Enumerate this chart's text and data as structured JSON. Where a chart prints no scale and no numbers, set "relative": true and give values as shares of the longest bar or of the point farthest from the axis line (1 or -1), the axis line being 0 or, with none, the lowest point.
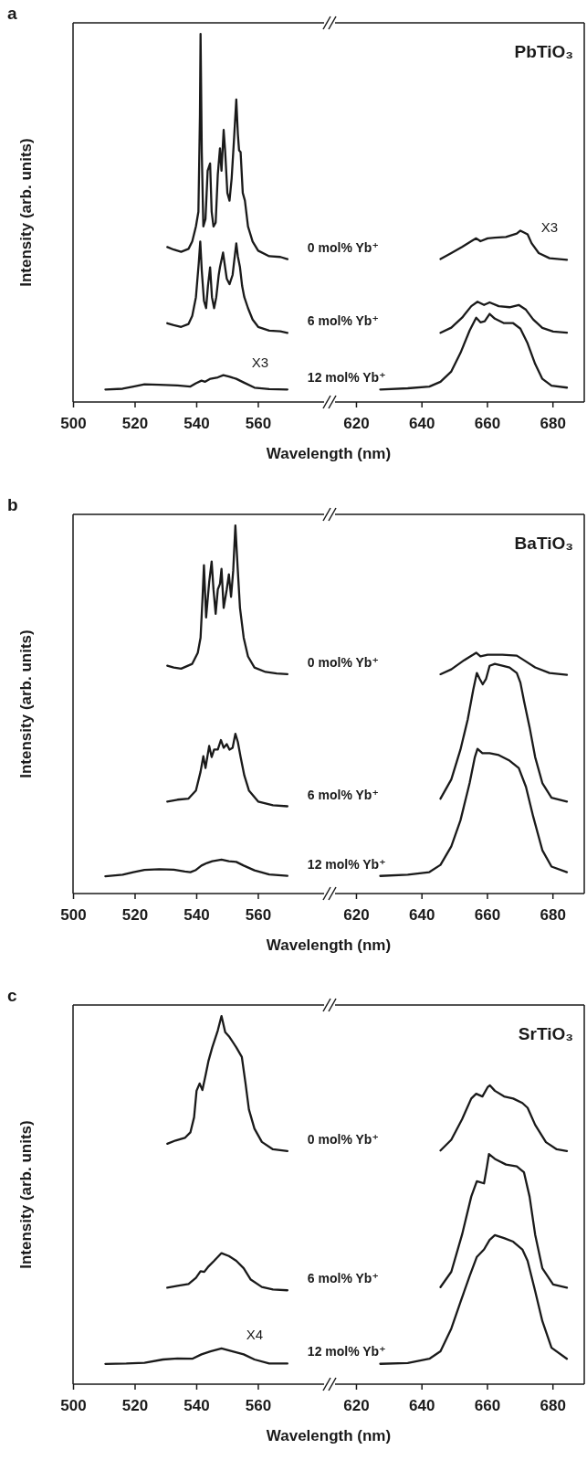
{
  "chart_data": [
    {
      "type": "line",
      "title": "a",
      "xlabel": "Wavelength (nm)",
      "ylabel": "Intensity (arb. units)",
      "xlim": [
        500,
        581.5
      ],
      "xticks": [
        500,
        520,
        540,
        560
      ],
      "relative": true,
      "annotations": [
        "X3"
      ],
      "series": [
        {
          "name": "0 mol% Yb⁺",
          "color": "#1a1a1a",
          "x": [
            530.6,
            532.7,
            535.1,
            537.5,
            538.7,
            539.9,
            540.7,
            541.2,
            541.4,
            541.8,
            542.3,
            543.0,
            543.7,
            544.5,
            545.0,
            545.6,
            546.3,
            547.0,
            547.7,
            548.2,
            548.9,
            549.4,
            550.1,
            550.8,
            551.5,
            552.3,
            553.0,
            553.5,
            553.9,
            554.4,
            555.1,
            555.8,
            556.8,
            558.3,
            560.1,
            563.7,
            567.3,
            569.6
          ],
          "values": [
            0.421,
            0.414,
            0.408,
            0.416,
            0.436,
            0.477,
            0.517,
            0.78,
            1.0,
            0.679,
            0.477,
            0.497,
            0.628,
            0.648,
            0.517,
            0.477,
            0.487,
            0.618,
            0.689,
            0.628,
            0.739,
            0.679,
            0.568,
            0.547,
            0.608,
            0.719,
            0.822,
            0.729,
            0.684,
            0.679,
            0.568,
            0.547,
            0.477,
            0.436,
            0.411,
            0.396,
            0.394,
            0.388
          ]
        },
        {
          "name": "6 mol% Yb⁺",
          "color": "#1a1a1a",
          "x": [
            530.6,
            532.7,
            535.1,
            537.5,
            538.7,
            539.9,
            540.8,
            541.3,
            541.8,
            542.5,
            543.2,
            543.8,
            544.5,
            545.1,
            545.8,
            546.5,
            547.3,
            547.7,
            548.2,
            548.7,
            549.2,
            549.9,
            550.8,
            551.8,
            552.5,
            553.0,
            553.5,
            554.2,
            554.9,
            555.6,
            556.8,
            558.3,
            560.1,
            563.7,
            567.3,
            569.6
          ],
          "values": [
            0.214,
            0.209,
            0.204,
            0.212,
            0.234,
            0.285,
            0.376,
            0.436,
            0.356,
            0.275,
            0.255,
            0.315,
            0.366,
            0.285,
            0.255,
            0.285,
            0.345,
            0.366,
            0.386,
            0.406,
            0.376,
            0.335,
            0.32,
            0.345,
            0.396,
            0.431,
            0.396,
            0.366,
            0.315,
            0.285,
            0.255,
            0.224,
            0.204,
            0.194,
            0.192,
            0.188
          ]
        },
        {
          "name": "12 mol% Yb⁺",
          "color": "#1a1a1a",
          "x": [
            510.5,
            516.1,
            519.6,
            523.2,
            528.0,
            533.9,
            538.1,
            539.9,
            541.7,
            542.9,
            544.6,
            547.0,
            548.8,
            550.6,
            553.0,
            555.4,
            558.9,
            563.7,
            569.6
          ],
          "values": [
            0.034,
            0.036,
            0.042,
            0.048,
            0.047,
            0.045,
            0.042,
            0.051,
            0.058,
            0.055,
            0.063,
            0.067,
            0.073,
            0.069,
            0.063,
            0.053,
            0.039,
            0.035,
            0.034
          ]
        }
      ]
    },
    {
      "type": "line",
      "title": "PbTiO₃",
      "xlim": [
        613.6,
        689.7
      ],
      "xticks": [
        620,
        640,
        660,
        680
      ],
      "relative": true,
      "annotations": [
        "X3"
      ],
      "series": [
        {
          "color": "#1a1a1a",
          "x": [
            645.8,
            649.1,
            652.4,
            655.2,
            656.7,
            658.0,
            660.2,
            662.4,
            665.8,
            669.1,
            670.2,
            672.4,
            673.6,
            675.8,
            679.1,
            684.4
          ],
          "values": [
            0.834,
            0.869,
            0.905,
            0.938,
            0.955,
            0.938,
            0.955,
            0.959,
            0.963,
            0.983,
            1.0,
            0.978,
            0.927,
            0.869,
            0.839,
            0.83
          ]
        },
        {
          "color": "#1a1a1a",
          "x": [
            645.8,
            649.1,
            652.4,
            655.2,
            657.1,
            659.1,
            660.8,
            663.6,
            666.9,
            669.7,
            671.9,
            674.1,
            676.9,
            680.2,
            684.4
          ],
          "values": [
            0.404,
            0.434,
            0.492,
            0.559,
            0.585,
            0.566,
            0.581,
            0.559,
            0.553,
            0.566,
            0.538,
            0.482,
            0.432,
            0.411,
            0.404
          ]
        },
        {
          "color": "#1a1a1a",
          "x": [
            627.4,
            635.8,
            642.4,
            645.8,
            649.1,
            651.9,
            654.7,
            656.7,
            658.0,
            659.3,
            660.8,
            662.4,
            665.2,
            668.0,
            670.2,
            672.4,
            674.7,
            676.9,
            679.7,
            684.4
          ],
          "values": [
            0.073,
            0.08,
            0.09,
            0.118,
            0.178,
            0.286,
            0.417,
            0.492,
            0.465,
            0.471,
            0.514,
            0.486,
            0.46,
            0.46,
            0.428,
            0.342,
            0.222,
            0.135,
            0.095,
            0.084
          ]
        }
      ]
    },
    {
      "type": "line",
      "title": "b",
      "xlabel": "Wavelength (nm)",
      "ylabel": "Intensity (arb. units)",
      "xlim": [
        500,
        581.5
      ],
      "xticks": [
        500,
        520,
        540,
        560
      ],
      "relative": true,
      "series": [
        {
          "name": "0 mol% Yb⁺",
          "color": "#1a1a1a",
          "x": [
            530.6,
            532.7,
            535.1,
            538.7,
            540.5,
            541.4,
            542.0,
            542.5,
            543.2,
            544.2,
            545.0,
            545.6,
            546.3,
            547.0,
            547.7,
            548.2,
            548.9,
            549.9,
            550.6,
            551.3,
            552.0,
            552.7,
            553.5,
            554.2,
            555.4,
            556.8,
            558.9,
            562.5,
            566.1,
            569.6
          ],
          "values": [
            0.619,
            0.614,
            0.611,
            0.624,
            0.654,
            0.695,
            0.796,
            0.892,
            0.75,
            0.846,
            0.902,
            0.826,
            0.76,
            0.826,
            0.841,
            0.882,
            0.776,
            0.826,
            0.867,
            0.806,
            0.877,
            1.0,
            0.877,
            0.776,
            0.695,
            0.644,
            0.614,
            0.602,
            0.598,
            0.596
          ]
        },
        {
          "name": "6 mol% Yb⁺",
          "color": "#1a1a1a",
          "x": [
            530.6,
            533.9,
            537.5,
            539.9,
            541.4,
            542.3,
            543.0,
            544.2,
            545.0,
            545.8,
            547.0,
            548.0,
            548.9,
            549.9,
            550.8,
            551.8,
            552.7,
            553.5,
            554.4,
            555.6,
            557.1,
            560.1,
            564.9,
            569.6
          ],
          "values": [
            0.25,
            0.255,
            0.258,
            0.28,
            0.331,
            0.373,
            0.341,
            0.401,
            0.371,
            0.391,
            0.391,
            0.417,
            0.396,
            0.406,
            0.391,
            0.396,
            0.434,
            0.412,
            0.371,
            0.321,
            0.28,
            0.25,
            0.24,
            0.237
          ]
        },
        {
          "name": "12 mol% Yb⁺",
          "color": "#1a1a1a",
          "x": [
            510.5,
            516.1,
            519.6,
            523.2,
            528.0,
            532.7,
            536.3,
            538.1,
            539.9,
            541.7,
            543.5,
            545.2,
            548.2,
            550.6,
            553.0,
            555.4,
            558.9,
            563.7,
            569.6
          ],
          "values": [
            0.047,
            0.051,
            0.058,
            0.064,
            0.066,
            0.065,
            0.06,
            0.058,
            0.064,
            0.076,
            0.083,
            0.088,
            0.092,
            0.088,
            0.086,
            0.076,
            0.063,
            0.052,
            0.048
          ]
        }
      ]
    },
    {
      "type": "line",
      "title": "BaTiO₃",
      "xlim": [
        613.6,
        689.7
      ],
      "xticks": [
        620,
        640,
        660,
        680
      ],
      "relative": true,
      "series": [
        {
          "color": "#1a1a1a",
          "x": [
            645.8,
            649.1,
            653.0,
            655.8,
            656.7,
            658.0,
            660.2,
            664.7,
            669.1,
            671.3,
            674.7,
            679.1,
            684.4
          ],
          "values": [
            0.911,
            0.931,
            0.969,
            0.992,
            1.0,
            0.985,
            0.992,
            0.992,
            0.988,
            0.969,
            0.939,
            0.916,
            0.908
          ]
        },
        {
          "color": "#1a1a1a",
          "x": [
            645.8,
            649.1,
            651.9,
            654.1,
            655.8,
            656.9,
            657.8,
            658.7,
            659.7,
            660.8,
            662.4,
            664.7,
            666.9,
            669.1,
            670.2,
            671.3,
            673.0,
            674.7,
            676.9,
            679.7,
            684.4
          ],
          "values": [
            0.394,
            0.474,
            0.598,
            0.722,
            0.846,
            0.916,
            0.891,
            0.869,
            0.891,
            0.946,
            0.954,
            0.946,
            0.939,
            0.916,
            0.876,
            0.8,
            0.691,
            0.567,
            0.459,
            0.398,
            0.382
          ]
        },
        {
          "color": "#1a1a1a",
          "x": [
            627.4,
            635.8,
            642.4,
            645.8,
            649.1,
            651.9,
            654.7,
            656.3,
            657.1,
            658.6,
            660.8,
            663.6,
            666.9,
            669.7,
            671.9,
            674.1,
            676.9,
            679.7,
            684.4
          ],
          "values": [
            0.073,
            0.078,
            0.089,
            0.119,
            0.196,
            0.304,
            0.459,
            0.567,
            0.601,
            0.583,
            0.583,
            0.575,
            0.552,
            0.521,
            0.443,
            0.32,
            0.18,
            0.112,
            0.089
          ]
        }
      ]
    },
    {
      "type": "line",
      "title": "c",
      "xlabel": "Wavelength (nm)",
      "ylabel": "Intensity (arb. units)",
      "xlim": [
        500,
        581.5
      ],
      "xticks": [
        500,
        520,
        540,
        560
      ],
      "relative": true,
      "annotations": [
        "X4"
      ],
      "series": [
        {
          "name": "0 mol% Yb⁺",
          "color": "#1a1a1a",
          "x": [
            530.6,
            533.3,
            536.3,
            538.1,
            539.3,
            540.1,
            541.1,
            542.0,
            543.0,
            544.0,
            545.2,
            547.0,
            548.2,
            549.4,
            550.8,
            553.0,
            554.8,
            556.0,
            557.1,
            558.9,
            561.3,
            564.9,
            569.6
          ],
          "values": [
            0.653,
            0.662,
            0.669,
            0.684,
            0.725,
            0.797,
            0.817,
            0.799,
            0.838,
            0.879,
            0.915,
            0.961,
            1.0,
            0.956,
            0.943,
            0.915,
            0.889,
            0.817,
            0.746,
            0.694,
            0.658,
            0.638,
            0.633
          ]
        },
        {
          "name": "6 mol% Yb⁺",
          "color": "#1a1a1a",
          "x": [
            530.6,
            533.9,
            537.5,
            539.9,
            541.4,
            542.6,
            544.0,
            545.8,
            548.2,
            550.6,
            553.0,
            555.4,
            557.7,
            561.3,
            564.9,
            569.6
          ],
          "values": [
            0.262,
            0.267,
            0.272,
            0.289,
            0.307,
            0.305,
            0.32,
            0.335,
            0.356,
            0.348,
            0.335,
            0.315,
            0.284,
            0.264,
            0.257,
            0.255
          ]
        },
        {
          "name": "12 mol% Yb⁺",
          "color": "#1a1a1a",
          "x": [
            510.5,
            517.3,
            523.2,
            529.2,
            533.9,
            538.7,
            541.7,
            544.6,
            548.2,
            551.8,
            555.4,
            558.9,
            563.7,
            569.6
          ],
          "values": [
            0.055,
            0.056,
            0.058,
            0.067,
            0.07,
            0.069,
            0.081,
            0.089,
            0.097,
            0.089,
            0.081,
            0.067,
            0.056,
            0.056
          ]
        }
      ]
    },
    {
      "type": "line",
      "title": "SrTiO₃",
      "xlim": [
        613.6,
        689.7
      ],
      "xticks": [
        620,
        640,
        660,
        680
      ],
      "relative": true,
      "series": [
        {
          "color": "#1a1a1a",
          "x": [
            645.8,
            649.1,
            652.4,
            655.2,
            656.7,
            658.6,
            660.2,
            660.9,
            662.4,
            665.2,
            668.0,
            670.8,
            672.4,
            674.7,
            678.0,
            681.3,
            684.4
          ],
          "values": [
            0.782,
            0.818,
            0.887,
            0.956,
            0.972,
            0.963,
            0.994,
            1.0,
            0.982,
            0.963,
            0.956,
            0.941,
            0.925,
            0.868,
            0.81,
            0.786,
            0.78
          ]
        },
        {
          "color": "#1a1a1a",
          "x": [
            645.8,
            649.1,
            652.4,
            655.2,
            656.9,
            659.1,
            660.0,
            660.6,
            662.4,
            665.8,
            669.1,
            671.3,
            673.0,
            674.7,
            676.9,
            680.2,
            684.4
          ],
          "values": [
            0.325,
            0.376,
            0.501,
            0.628,
            0.679,
            0.672,
            0.729,
            0.77,
            0.754,
            0.735,
            0.729,
            0.709,
            0.628,
            0.501,
            0.388,
            0.334,
            0.323
          ]
        },
        {
          "color": "#1a1a1a",
          "x": [
            627.4,
            635.8,
            642.4,
            645.8,
            649.1,
            651.9,
            654.7,
            656.9,
            659.1,
            660.8,
            662.4,
            665.2,
            668.0,
            670.8,
            672.4,
            674.7,
            676.9,
            679.7,
            684.4
          ],
          "values": [
            0.068,
            0.071,
            0.085,
            0.11,
            0.186,
            0.275,
            0.362,
            0.426,
            0.451,
            0.483,
            0.499,
            0.489,
            0.477,
            0.451,
            0.413,
            0.312,
            0.211,
            0.122,
            0.085
          ]
        }
      ]
    }
  ]
}
